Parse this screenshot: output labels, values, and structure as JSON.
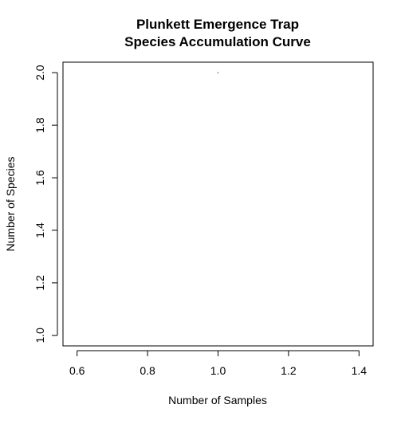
{
  "chart_data": {
    "type": "line",
    "title_lines": [
      "Plunkett Emergence Trap",
      "Species Accumulation Curve"
    ],
    "xlabel": "Number of Samples",
    "ylabel": "Number of Species",
    "xlim": [
      0.56,
      1.44
    ],
    "ylim": [
      0.96,
      2.04
    ],
    "x_ticks": [
      0.6,
      0.8,
      1.0,
      1.2,
      1.4
    ],
    "x_tick_labels": [
      "0.6",
      "0.8",
      "1.0",
      "1.2",
      "1.4"
    ],
    "y_ticks": [
      1.0,
      1.2,
      1.4,
      1.6,
      1.8,
      2.0
    ],
    "y_tick_labels": [
      "1.0",
      "1.2",
      "1.4",
      "1.6",
      "1.8",
      "2.0"
    ],
    "grid": false,
    "series": [
      {
        "x": [
          1.0
        ],
        "y": [
          2.0
        ],
        "color": "#000000"
      }
    ]
  }
}
